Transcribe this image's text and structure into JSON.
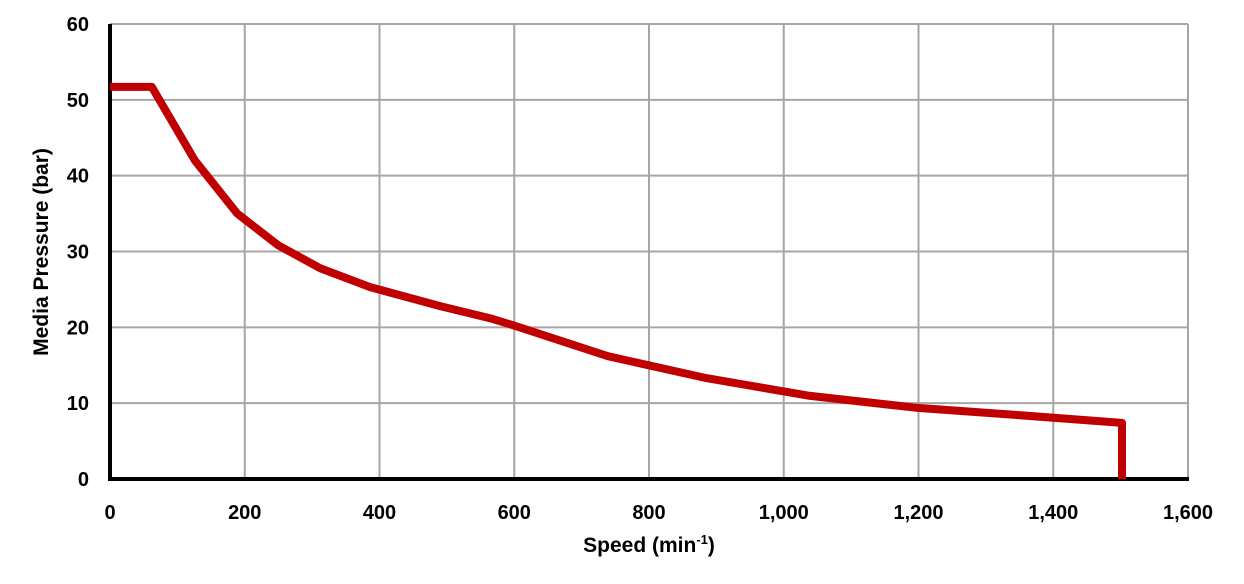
{
  "chart_data": {
    "type": "line",
    "title": "",
    "xlabel": "Speed (min-1)",
    "xlabel_base": "Speed (min",
    "xlabel_sup": "-1",
    "xlabel_close": ")",
    "ylabel": "Media Pressure (bar)",
    "xlim": [
      0,
      1600
    ],
    "ylim": [
      0,
      60
    ],
    "grid": true,
    "legend": null,
    "x_ticks": [
      0,
      200,
      400,
      600,
      800,
      1000,
      1200,
      1400,
      1600
    ],
    "x_tick_labels": [
      "0",
      "200",
      "400",
      "600",
      "800",
      "1,000",
      "1,200",
      "1,400",
      "1,600"
    ],
    "y_ticks": [
      0,
      10,
      20,
      30,
      40,
      50,
      60
    ],
    "y_tick_labels": [
      "0",
      "10",
      "20",
      "30",
      "40",
      "50",
      "60"
    ],
    "series": [
      {
        "name": "Media Pressure",
        "color": "#c00000",
        "x": [
          0,
          62,
          126,
          189,
          250,
          312,
          386,
          490,
          564,
          601,
          739,
          885,
          1036,
          1196,
          1336,
          1502,
          1502
        ],
        "y": [
          51.7,
          51.7,
          42.0,
          35.0,
          30.8,
          27.8,
          25.3,
          22.8,
          21.2,
          20.2,
          16.2,
          13.3,
          11.0,
          9.4,
          8.5,
          7.4,
          0
        ]
      }
    ]
  },
  "colors": {
    "line": "#c00000",
    "grid": "#a6a6a6",
    "axis": "#000000"
  }
}
